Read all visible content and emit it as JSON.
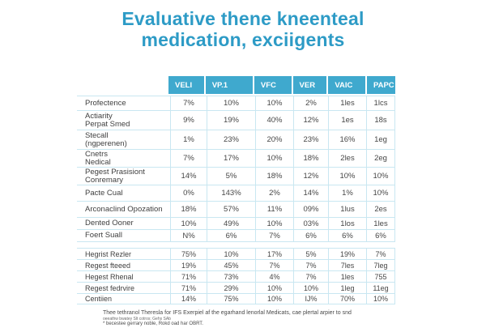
{
  "title": {
    "line1": "Evaluative thene kneenteal",
    "line2": "medication, exciigents"
  },
  "chart_data": {
    "type": "table",
    "title": "Evaluative thene kneenteal medication, exciigents",
    "columns": [
      "VELI",
      "VP.1",
      "VFC",
      "VER",
      "VAIC",
      "PAPC"
    ],
    "sections": [
      {
        "rows": [
          {
            "label": "Profectence",
            "values": [
              "7%",
              "10%",
              "10%",
              "2%",
              "1les",
              "1lcs"
            ]
          },
          {
            "label": "Actiarity\nPerpat Smed",
            "values": [
              "9%",
              "19%",
              "40%",
              "12%",
              "1es",
              "18s"
            ]
          },
          {
            "label": "Stecall\n(ngperenen)",
            "values": [
              "1%",
              "23%",
              "20%",
              "23%",
              "16%",
              "1eg"
            ]
          },
          {
            "label": "Cnetrs\nNedical",
            "values": [
              "7%",
              "17%",
              "10%",
              "18%",
              "2les",
              "2eg"
            ]
          },
          {
            "label": "Pegest Prasisiont\nConremary",
            "values": [
              "14%",
              "5%",
              "18%",
              "12%",
              "10%",
              "10%"
            ]
          },
          {
            "label": "Pacte Cual",
            "values": [
              "0%",
              "143%",
              "2%",
              "14%",
              "1%",
              "10%"
            ]
          },
          {
            "label": "Arconaclind Opozation",
            "values": [
              "18%",
              "57%",
              "11%",
              "09%",
              "1lus",
              "2es"
            ]
          },
          {
            "label": "Dented Ooner",
            "values": [
              "10%",
              "49%",
              "10%",
              "03%",
              "1los",
              "1les"
            ]
          },
          {
            "label": "Foert Suall",
            "values": [
              "N%",
              "6%",
              "7%",
              "6%",
              "6%",
              "6%"
            ]
          }
        ]
      },
      {
        "rows": [
          {
            "label": "Hegrist Rezler",
            "values": [
              "75%",
              "10%",
              "17%",
              "5%",
              "19%",
              "7%"
            ]
          },
          {
            "label": "Regest fteeed",
            "values": [
              "19%",
              "45%",
              "7%",
              "7%",
              "7les",
              "7leg"
            ]
          },
          {
            "label": "Hegest Rhenal",
            "values": [
              "71%",
              "73%",
              "4%",
              "7%",
              "1les",
              "755"
            ]
          },
          {
            "label": "Regest fedrvire",
            "values": [
              "71%",
              "29%",
              "10%",
              "10%",
              "1leg",
              "11eg"
            ]
          },
          {
            "label": "Centiien",
            "values": [
              "14%",
              "75%",
              "10%",
              "IJ%",
              "70%",
              "10%"
            ]
          }
        ]
      }
    ]
  },
  "footer": {
    "line1": "Thee tethranol Theresla for IFS Exerpiel af the egarhand lenorlal Medicats, cae plertal arpier to snd",
    "line2": "oeeathw bwatey Slt cotros; Gehs SAb",
    "line3": "* becestee gerrary noble, Rokd oad har OBRT."
  },
  "colors": {
    "accent": "#2D9BC6",
    "header_bg": "#3FA9CE",
    "border": "#C9E7F1",
    "text": "#3F3F3F"
  }
}
